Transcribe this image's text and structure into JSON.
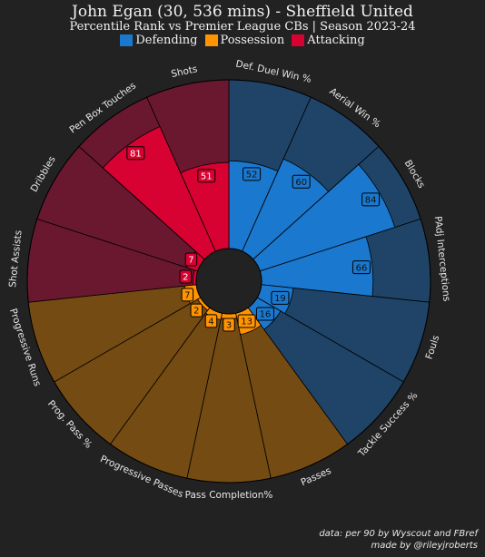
{
  "header": {
    "title": "John Egan (30, 536 mins) - Sheffield United",
    "subtitle": "Percentile Rank vs Premier League CBs | Season 2023-24"
  },
  "legend": [
    {
      "label": "Defending",
      "color": "#1a78cf"
    },
    {
      "label": "Possession",
      "color": "#ff9300"
    },
    {
      "label": "Attacking",
      "color": "#d70232"
    }
  ],
  "footer": {
    "line1": "data: per 90 by Wyscout and FBref",
    "line2": "made by @rileyjroberts"
  },
  "colors": {
    "background": "#222222",
    "defending_fill": "#1a78cf",
    "defending_bg": "#1f4468",
    "possession_fill": "#ff9300",
    "possession_bg": "#744b12",
    "attacking_fill": "#d70232",
    "attacking_bg": "#6a1730"
  },
  "chart_data": {
    "type": "pie",
    "subtype": "radar-pizza",
    "title": "John Egan (30, 536 mins) - Sheffield United",
    "subtitle": "Percentile Rank vs Premier League CBs | Season 2023-24",
    "range": [
      0,
      100
    ],
    "categories": [
      "Def. Duel Win %",
      "Aerial Win %",
      "Blocks",
      "PAdj Interceptions",
      "Fouls",
      "Tackle Success %",
      "Passes",
      "Pass Completion%",
      "Progressive Passes",
      "Prog. Pass %",
      "Progressive Runs",
      "Shot Assists",
      "Dribbles",
      "Pen Box Touches",
      "Shots"
    ],
    "values": [
      52,
      60,
      84,
      66,
      19,
      16,
      13,
      3,
      4,
      2,
      7,
      2,
      7,
      81,
      51
    ],
    "groups": [
      "Defending",
      "Defending",
      "Defending",
      "Defending",
      "Defending",
      "Defending",
      "Possession",
      "Possession",
      "Possession",
      "Possession",
      "Possession",
      "Attacking",
      "Attacking",
      "Attacking",
      "Attacking"
    ],
    "legend_position": "top-center"
  }
}
